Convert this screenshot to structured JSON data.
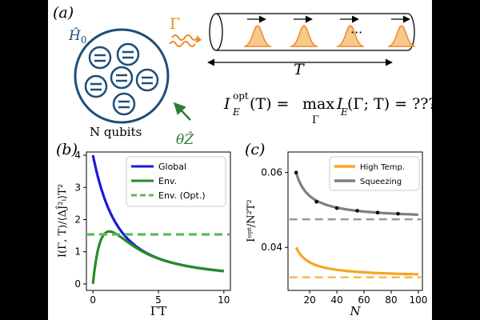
{
  "panel_a": {
    "label": "(a)",
    "hamiltonian": "Ĥ",
    "hamiltonian_sub": "0",
    "gamma": "Γ",
    "qubits_label": "N qubits",
    "theta_label": "θẐ",
    "time_label": "T",
    "dots": "···",
    "formula": {
      "lhs": "I",
      "lhs_sup": "opt",
      "lhs_sub": "E",
      "lhs_arg": "(T) = ",
      "max": "max",
      "max_sub": "Γ",
      "rhs": " I",
      "rhs_sub": "E",
      "rhs_arg": "(Γ; T) = ???"
    },
    "colors": {
      "blue": "#1f4e79",
      "orange": "#f08a24",
      "green": "#2e7d32"
    }
  },
  "panel_b": {
    "label": "(b)",
    "chart_data": {
      "type": "line",
      "xlabel": "ΓT",
      "ylabel": "I(Γ, T)/⟨ΔĴ²ᵢ⟩T²",
      "xlim": [
        -0.5,
        10.5
      ],
      "ylim": [
        -0.2,
        4.1
      ],
      "xticks": [
        0,
        5,
        10
      ],
      "yticks": [
        0,
        1,
        2,
        3,
        4
      ],
      "legend": "top-right",
      "series": [
        {
          "name": "Global",
          "color": "#1a1adb",
          "dash": "",
          "formula": "global"
        },
        {
          "name": "Env.",
          "color": "#2a8a2a",
          "dash": "",
          "formula": "env"
        },
        {
          "name": "Env. (Opt.)",
          "color": "#5fb85f",
          "dash": "10,6",
          "constant": 1.54
        }
      ]
    }
  },
  "panel_c": {
    "label": "(c)",
    "chart_data": {
      "type": "line",
      "xlabel": "N",
      "ylabel": "Iᵒᵖᵗ/N²T²",
      "xlim": [
        4,
        103
      ],
      "ylim": [
        0.0285,
        0.0655
      ],
      "xticks": [
        20,
        40,
        60,
        80,
        100
      ],
      "yticks": [
        0.04,
        0.06
      ],
      "ytick_labels": [
        "0.04",
        "0.06"
      ],
      "legend": "top-right",
      "series": [
        {
          "name": "High Temp.",
          "color": "#f5a623",
          "asymptote": 0.032,
          "amp": 0.08
        },
        {
          "name": "Squeezing",
          "color": "#7f7f7f",
          "asymptote": 0.0475,
          "amp": 0.125
        }
      ],
      "squeezing_points": {
        "x": [
          10,
          25,
          40,
          55,
          70,
          85
        ],
        "y": [
          0.06,
          0.0522,
          0.0505,
          0.0498,
          0.0493,
          0.049
        ]
      }
    }
  }
}
